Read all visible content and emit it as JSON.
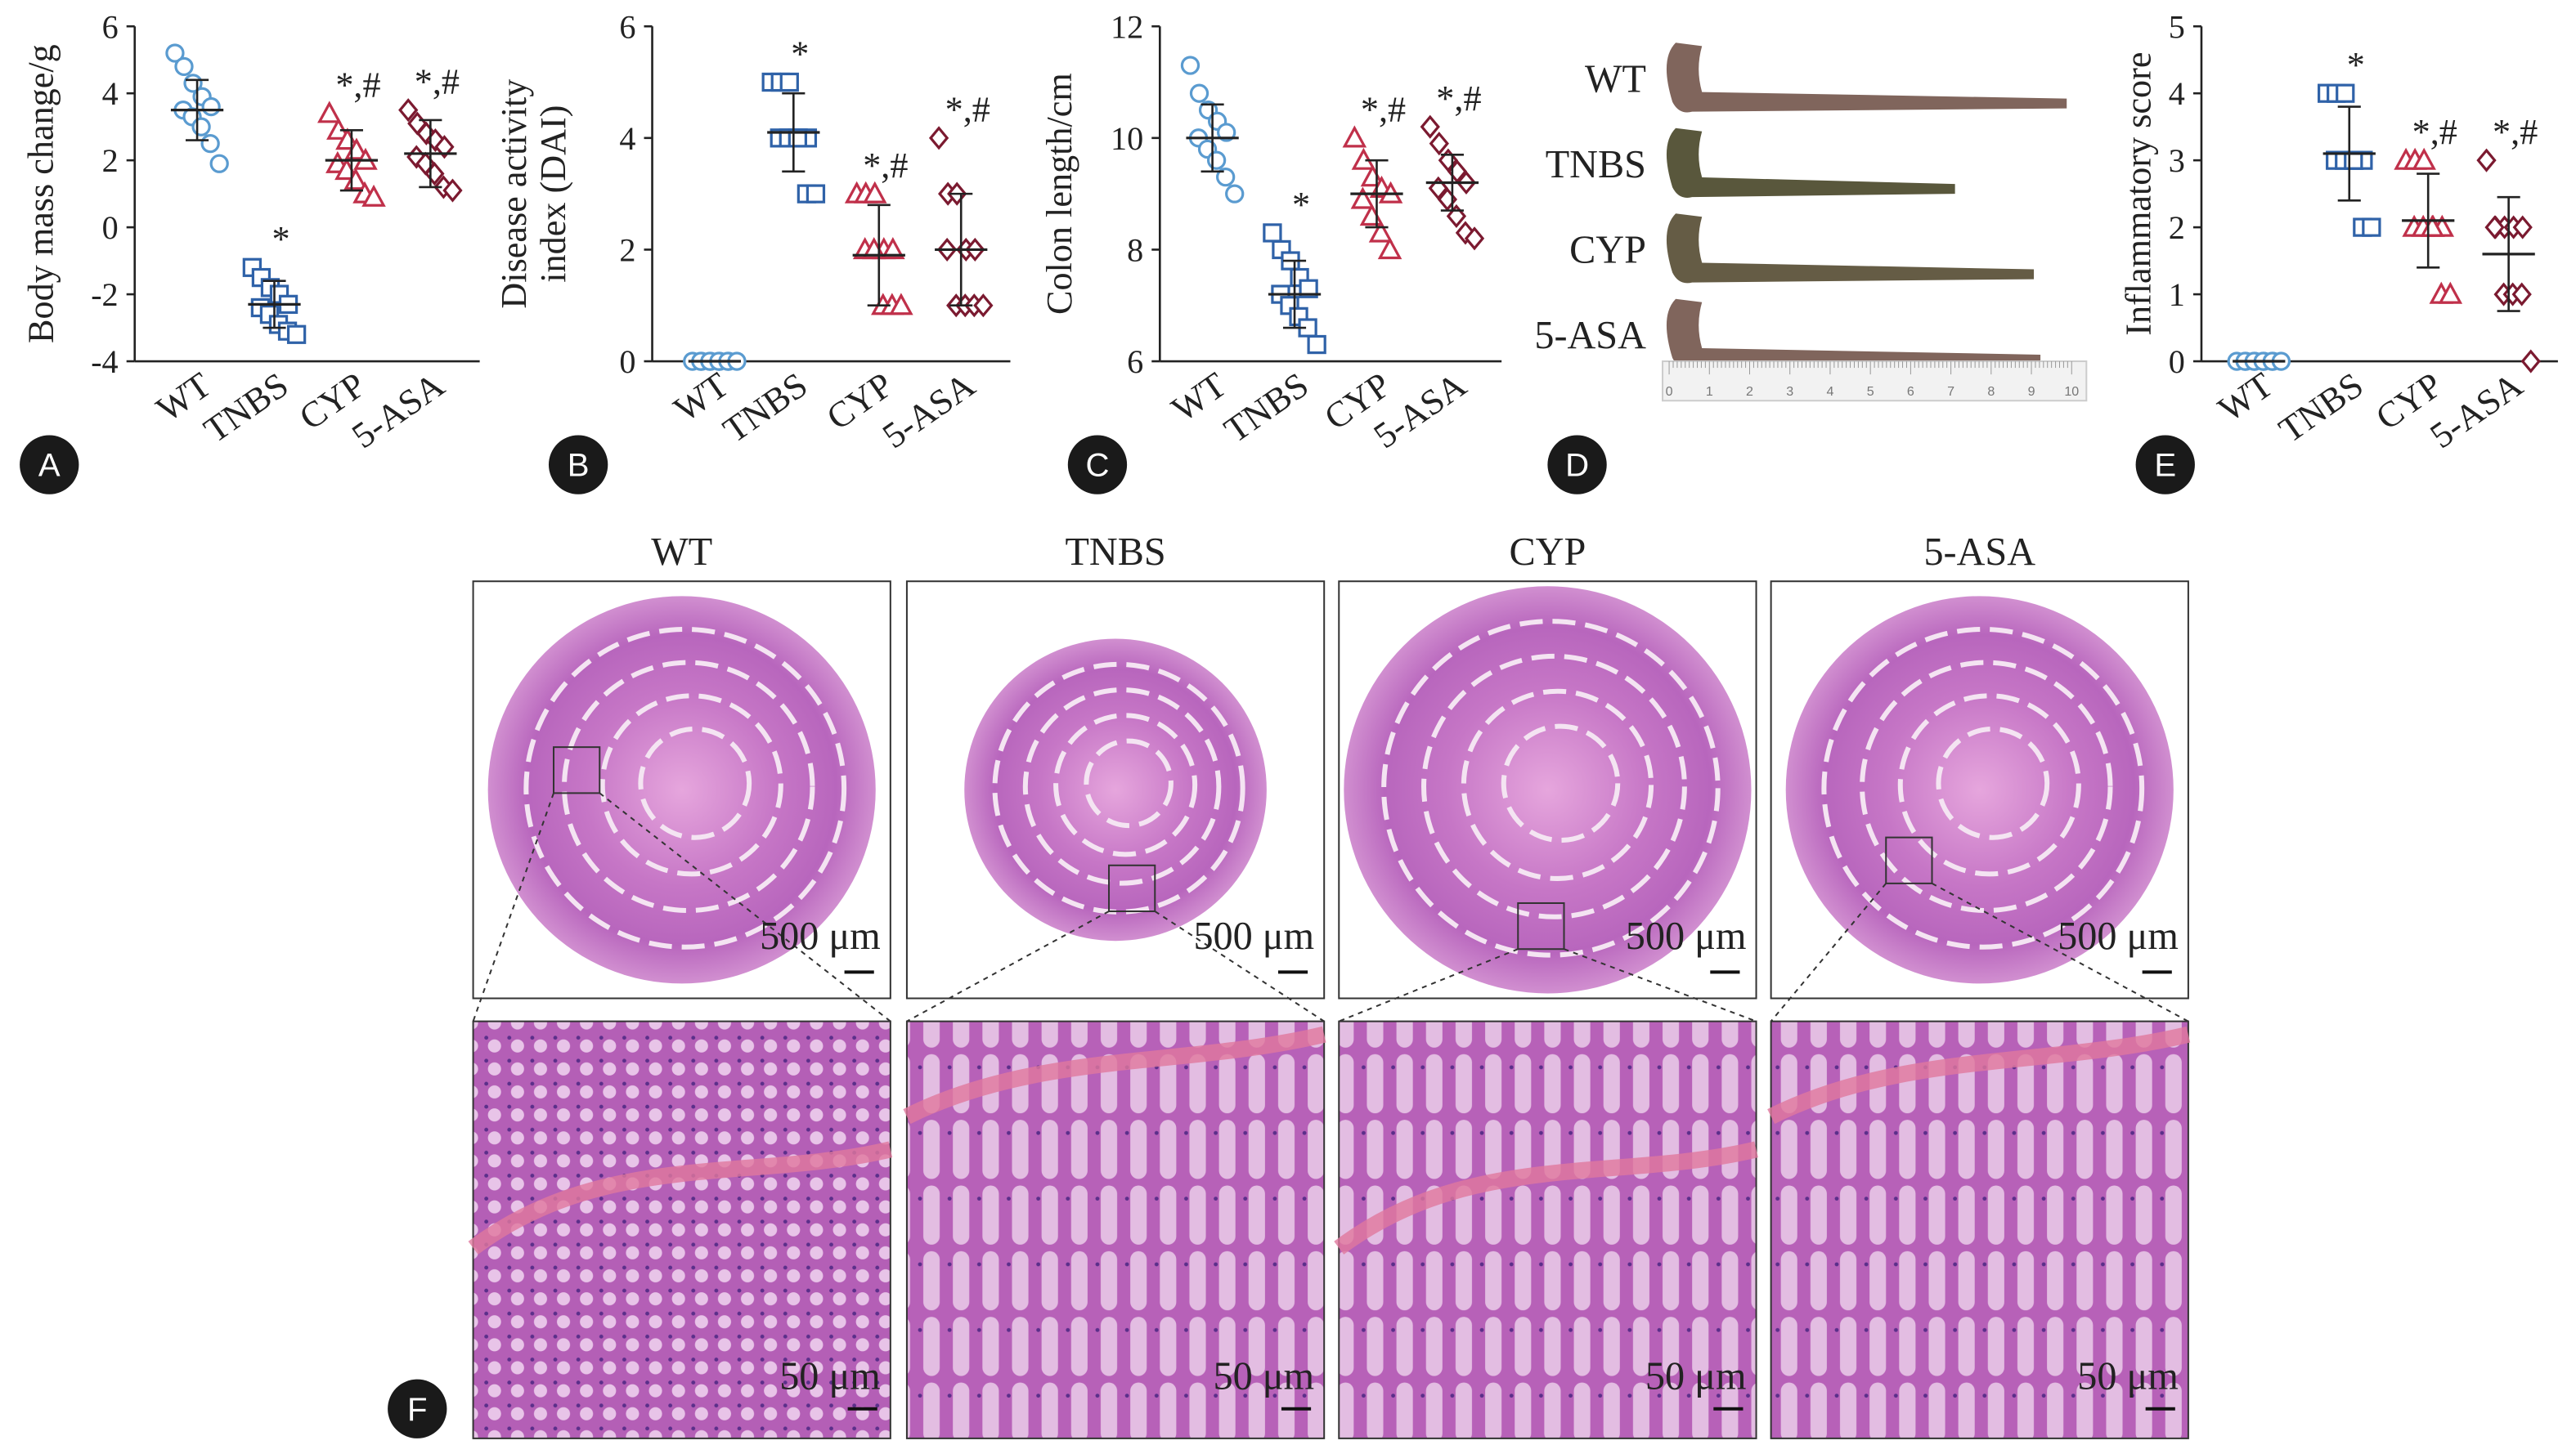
{
  "chart_data": [
    {
      "type": "dot",
      "panel": "A",
      "ylabel": [
        "Body mass change/g"
      ],
      "ylim": [
        -4,
        6
      ],
      "yticks": [
        -4,
        -2,
        0,
        2,
        4,
        6
      ],
      "groups": [
        {
          "name": "WT",
          "color": "#5a9bd0",
          "marker": "circle",
          "points": [
            5.2,
            4.8,
            4.3,
            3.9,
            3.6,
            3.5,
            3.3,
            3.0,
            2.5,
            1.9
          ],
          "mean": 3.5,
          "sd": 0.9
        },
        {
          "name": "TNBS",
          "color": "#2f62a8",
          "marker": "square",
          "points": [
            -1.2,
            -1.5,
            -1.8,
            -2.0,
            -2.3,
            -2.4,
            -2.6,
            -2.9,
            -3.1,
            -3.2
          ],
          "mean": -2.3,
          "sd": 0.7,
          "annotation": "*"
        },
        {
          "name": "CYP",
          "color": "#c0304a",
          "marker": "triangle",
          "points": [
            3.4,
            2.9,
            2.6,
            2.3,
            2.0,
            1.9,
            1.7,
            1.4,
            1.0,
            0.9
          ],
          "mean": 2.0,
          "sd": 0.9,
          "annotation": "*,#"
        },
        {
          "name": "5-ASA",
          "color": "#7b1a30",
          "marker": "diamond",
          "points": [
            3.5,
            3.1,
            2.8,
            2.6,
            2.4,
            2.1,
            1.9,
            1.6,
            1.2,
            1.1
          ],
          "mean": 2.2,
          "sd": 1.0,
          "annotation": "*,#"
        }
      ]
    },
    {
      "type": "dot",
      "panel": "B",
      "ylabel": [
        "Disease activity",
        "index (DAI)"
      ],
      "ylim": [
        0,
        6
      ],
      "yticks": [
        0,
        2,
        4,
        6
      ],
      "groups": [
        {
          "name": "WT",
          "color": "#5a9bd0",
          "marker": "circle",
          "points": [
            0,
            0,
            0,
            0,
            0,
            0,
            0,
            0,
            0,
            0
          ],
          "mean": 0,
          "sd": 0
        },
        {
          "name": "TNBS",
          "color": "#2f62a8",
          "marker": "square",
          "points": [
            5,
            5,
            5,
            4,
            4,
            4,
            4,
            4,
            3,
            3
          ],
          "mean": 4.1,
          "sd": 0.7,
          "annotation": "*"
        },
        {
          "name": "CYP",
          "color": "#c0304a",
          "marker": "triangle",
          "points": [
            3,
            3,
            3,
            2,
            2,
            2,
            2,
            1,
            1,
            1
          ],
          "mean": 1.9,
          "sd": 0.9,
          "annotation": "*,#"
        },
        {
          "name": "5-ASA",
          "color": "#7b1a30",
          "marker": "diamond",
          "points": [
            4,
            3,
            3,
            2,
            2,
            2,
            1,
            1,
            1,
            1
          ],
          "mean": 2.0,
          "sd": 1.0,
          "annotation": "*,#"
        }
      ]
    },
    {
      "type": "dot",
      "panel": "C",
      "ylabel": [
        "Colon length/cm"
      ],
      "ylim": [
        6,
        12
      ],
      "yticks": [
        6,
        8,
        10,
        12
      ],
      "groups": [
        {
          "name": "WT",
          "color": "#5a9bd0",
          "marker": "circle",
          "points": [
            11.3,
            10.8,
            10.5,
            10.3,
            10.1,
            10.0,
            9.8,
            9.6,
            9.3,
            9.0
          ],
          "mean": 10.0,
          "sd": 0.6
        },
        {
          "name": "TNBS",
          "color": "#2f62a8",
          "marker": "square",
          "points": [
            8.3,
            8.0,
            7.8,
            7.5,
            7.3,
            7.2,
            7.0,
            6.8,
            6.6,
            6.3
          ],
          "mean": 7.2,
          "sd": 0.6,
          "annotation": "*"
        },
        {
          "name": "CYP",
          "color": "#c0304a",
          "marker": "triangle",
          "points": [
            10.0,
            9.6,
            9.3,
            9.1,
            9.0,
            8.9,
            8.6,
            8.3,
            8.0
          ],
          "mean": 9.0,
          "sd": 0.6,
          "annotation": "*,#"
        },
        {
          "name": "5-ASA",
          "color": "#7b1a30",
          "marker": "diamond",
          "points": [
            10.2,
            9.9,
            9.6,
            9.4,
            9.2,
            9.1,
            8.9,
            8.6,
            8.3,
            8.2
          ],
          "mean": 9.2,
          "sd": 0.5,
          "annotation": "*,#"
        }
      ]
    },
    {
      "type": "dot",
      "panel": "E",
      "ylabel": [
        "Inflammatory score"
      ],
      "ylim": [
        0,
        5
      ],
      "yticks": [
        0,
        1,
        2,
        3,
        4,
        5
      ],
      "groups": [
        {
          "name": "WT",
          "color": "#5a9bd0",
          "marker": "circle",
          "points": [
            0,
            0,
            0,
            0,
            0,
            0,
            0,
            0,
            0,
            0
          ],
          "mean": 0,
          "sd": 0
        },
        {
          "name": "TNBS",
          "color": "#2f62a8",
          "marker": "square",
          "points": [
            4,
            4,
            4,
            3,
            3,
            3,
            3,
            3,
            2,
            2
          ],
          "mean": 3.1,
          "sd": 0.7,
          "annotation": "*"
        },
        {
          "name": "CYP",
          "color": "#c0304a",
          "marker": "triangle",
          "points": [
            3,
            3,
            3,
            2,
            2,
            2,
            2,
            2,
            1,
            1
          ],
          "mean": 2.1,
          "sd": 0.7,
          "annotation": "*,#"
        },
        {
          "name": "5-ASA",
          "color": "#7b1a30",
          "marker": "diamond",
          "points": [
            3,
            2,
            2,
            2,
            2,
            2,
            1,
            1,
            1,
            0
          ],
          "mean": 1.6,
          "sd": 0.85,
          "annotation": "*,#"
        }
      ]
    }
  ],
  "photo": {
    "panel": "D",
    "labels": [
      "WT",
      "TNBS",
      "CYP",
      "5-ASA"
    ],
    "ruler": [
      0,
      1,
      2,
      3,
      4,
      5,
      6,
      7,
      8,
      9,
      10
    ]
  },
  "histology": {
    "panel": "F",
    "columns": [
      "WT",
      "TNBS",
      "CYP",
      "5-ASA"
    ],
    "overview_scale": "500 μm",
    "zoom_scale": "50 μm"
  }
}
